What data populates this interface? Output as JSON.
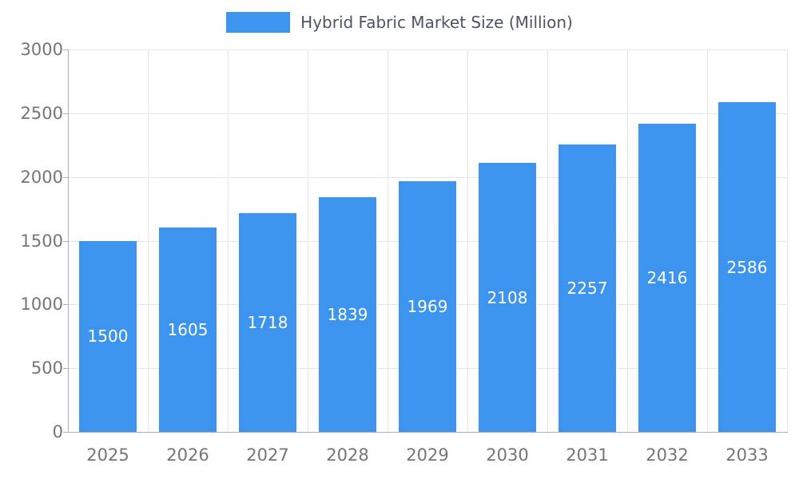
{
  "chart_data": {
    "type": "bar",
    "title": "Hybrid Fabric Market Size (Million)",
    "categories": [
      "2025",
      "2026",
      "2027",
      "2028",
      "2029",
      "2030",
      "2031",
      "2032",
      "2033"
    ],
    "values": [
      1500,
      1605,
      1718,
      1839,
      1969,
      2108,
      2257,
      2416,
      2586
    ],
    "xlabel": "",
    "ylabel": "",
    "ylim": [
      0,
      3000
    ],
    "yticks": [
      0,
      500,
      1000,
      1500,
      2000,
      2500,
      3000
    ],
    "grid": true,
    "legend_position": "top-center",
    "value_labels": "inside-middle",
    "colors": {
      "bar": "#3d94ef",
      "value_text": "#ffffff",
      "axis_text": "#757575",
      "legend_text": "#4c5464",
      "gridline": "#e6e6e6",
      "axis_line": "#b0b0b0",
      "background": "#ffffff"
    }
  }
}
